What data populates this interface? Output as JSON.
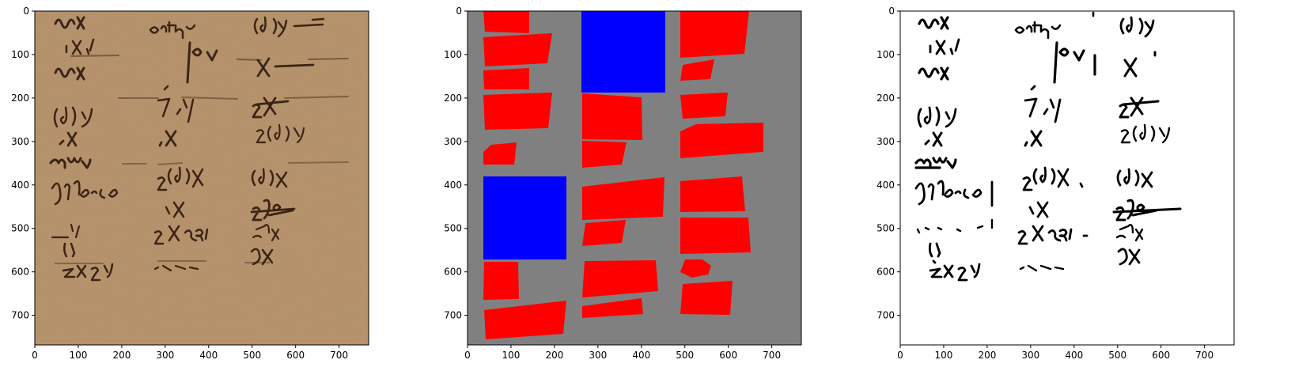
{
  "figure": {
    "panels": [
      {
        "id": "manuscript",
        "content": "photograph of handwritten manuscript fragment (sepia parchment)",
        "xticks": [
          0,
          100,
          200,
          300,
          400,
          500,
          600,
          700
        ],
        "yticks": [
          0,
          100,
          200,
          300,
          400,
          500,
          600,
          700
        ],
        "xlim": [
          0,
          768
        ],
        "ylim": [
          768,
          0
        ],
        "colors": {
          "parchment": "#b8946c",
          "ink": "#3b2414"
        }
      },
      {
        "id": "segmentation-mask",
        "content": "segmentation map: red = text word regions, blue = empty/blank regions, grey = background",
        "xticks": [
          0,
          100,
          200,
          300,
          400,
          500,
          600,
          700
        ],
        "yticks": [
          0,
          100,
          200,
          300,
          400,
          500,
          600,
          700
        ],
        "xlim": [
          0,
          768
        ],
        "ylim": [
          768,
          0
        ],
        "colors": {
          "background": "#808080",
          "text_region": "#ff0000",
          "blank_region": "#0000ff"
        }
      },
      {
        "id": "binarized",
        "content": "binarized black-on-white version of the text regions",
        "xticks": [
          0,
          100,
          200,
          300,
          400,
          500,
          600,
          700
        ],
        "yticks": [
          0,
          100,
          200,
          300,
          400,
          500,
          600,
          700
        ],
        "xlim": [
          0,
          768
        ],
        "ylim": [
          768,
          0
        ],
        "colors": {
          "paper": "#ffffff",
          "ink": "#000000"
        }
      }
    ]
  }
}
